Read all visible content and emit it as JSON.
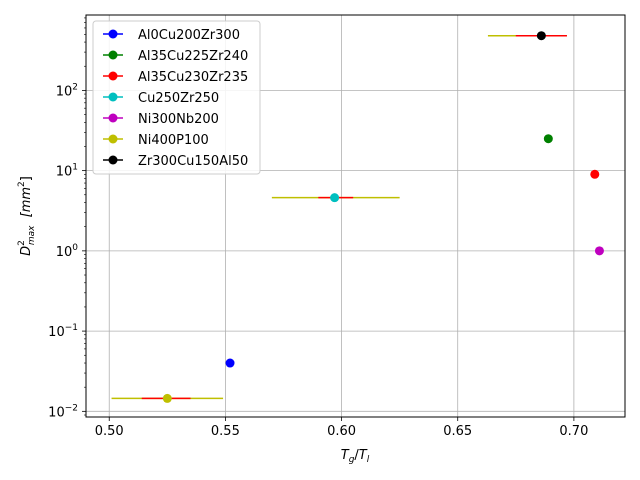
{
  "chart_data": {
    "type": "scatter",
    "title": "",
    "xlabel_base": "T",
    "xlabel_sub1": "g",
    "xlabel_sep": "/",
    "xlabel_sub2": "l",
    "ylabel_base": "D",
    "ylabel_sup": "2",
    "ylabel_sub": "max",
    "ylabel_unit_open": "[mm",
    "ylabel_unit_sup": "2",
    "ylabel_unit_close": "]",
    "x_scale": "linear",
    "y_scale": "log",
    "xlim": [
      0.49,
      0.722
    ],
    "ylim": [
      0.0085,
      870
    ],
    "x_ticks": [
      0.5,
      0.55,
      0.6,
      0.65,
      0.7
    ],
    "x_tick_labels": [
      "0.50",
      "0.55",
      "0.60",
      "0.65",
      "0.70"
    ],
    "y_ticks": [
      0.01,
      0.1,
      1,
      10,
      100
    ],
    "y_tick_labels": [
      {
        "base": "10",
        "exp": "−2"
      },
      {
        "base": "10",
        "exp": "−1"
      },
      {
        "base": "10",
        "exp": "0"
      },
      {
        "base": "10",
        "exp": "1"
      },
      {
        "base": "10",
        "exp": "2"
      }
    ],
    "grid": true,
    "legend_position": "top-left",
    "series": [
      {
        "name": "Al0Cu200Zr300",
        "color": "#0000ff",
        "x": 0.552,
        "y": 0.04
      },
      {
        "name": "Al35Cu225Zr240",
        "color": "#008000",
        "x": 0.689,
        "y": 25
      },
      {
        "name": "Al35Cu230Zr235",
        "color": "#ff0000",
        "x": 0.709,
        "y": 9
      },
      {
        "name": "Cu250Zr250",
        "color": "#00bfbf",
        "x": 0.597,
        "y": 4.6
      },
      {
        "name": "Ni300Nb200",
        "color": "#bf00bf",
        "x": 0.711,
        "y": 1.0
      },
      {
        "name": "Ni400P100",
        "color": "#bfbf00",
        "x": 0.525,
        "y": 0.0145
      },
      {
        "name": "Zr300Cu150Al50",
        "color": "#000000",
        "x": 0.686,
        "y": 480
      }
    ],
    "error_bars": [
      {
        "y": 0.0145,
        "outer": [
          0.501,
          0.549
        ],
        "inner": [
          0.514,
          0.535
        ]
      },
      {
        "y": 4.6,
        "outer": [
          0.57,
          0.625
        ],
        "inner": [
          0.59,
          0.605
        ]
      },
      {
        "y": 480,
        "outer": [
          0.663,
          0.697
        ],
        "inner": [
          0.675,
          0.697
        ]
      }
    ],
    "error_bar_colors": {
      "outer": "#bfbf00",
      "inner": "#ff0000"
    }
  }
}
